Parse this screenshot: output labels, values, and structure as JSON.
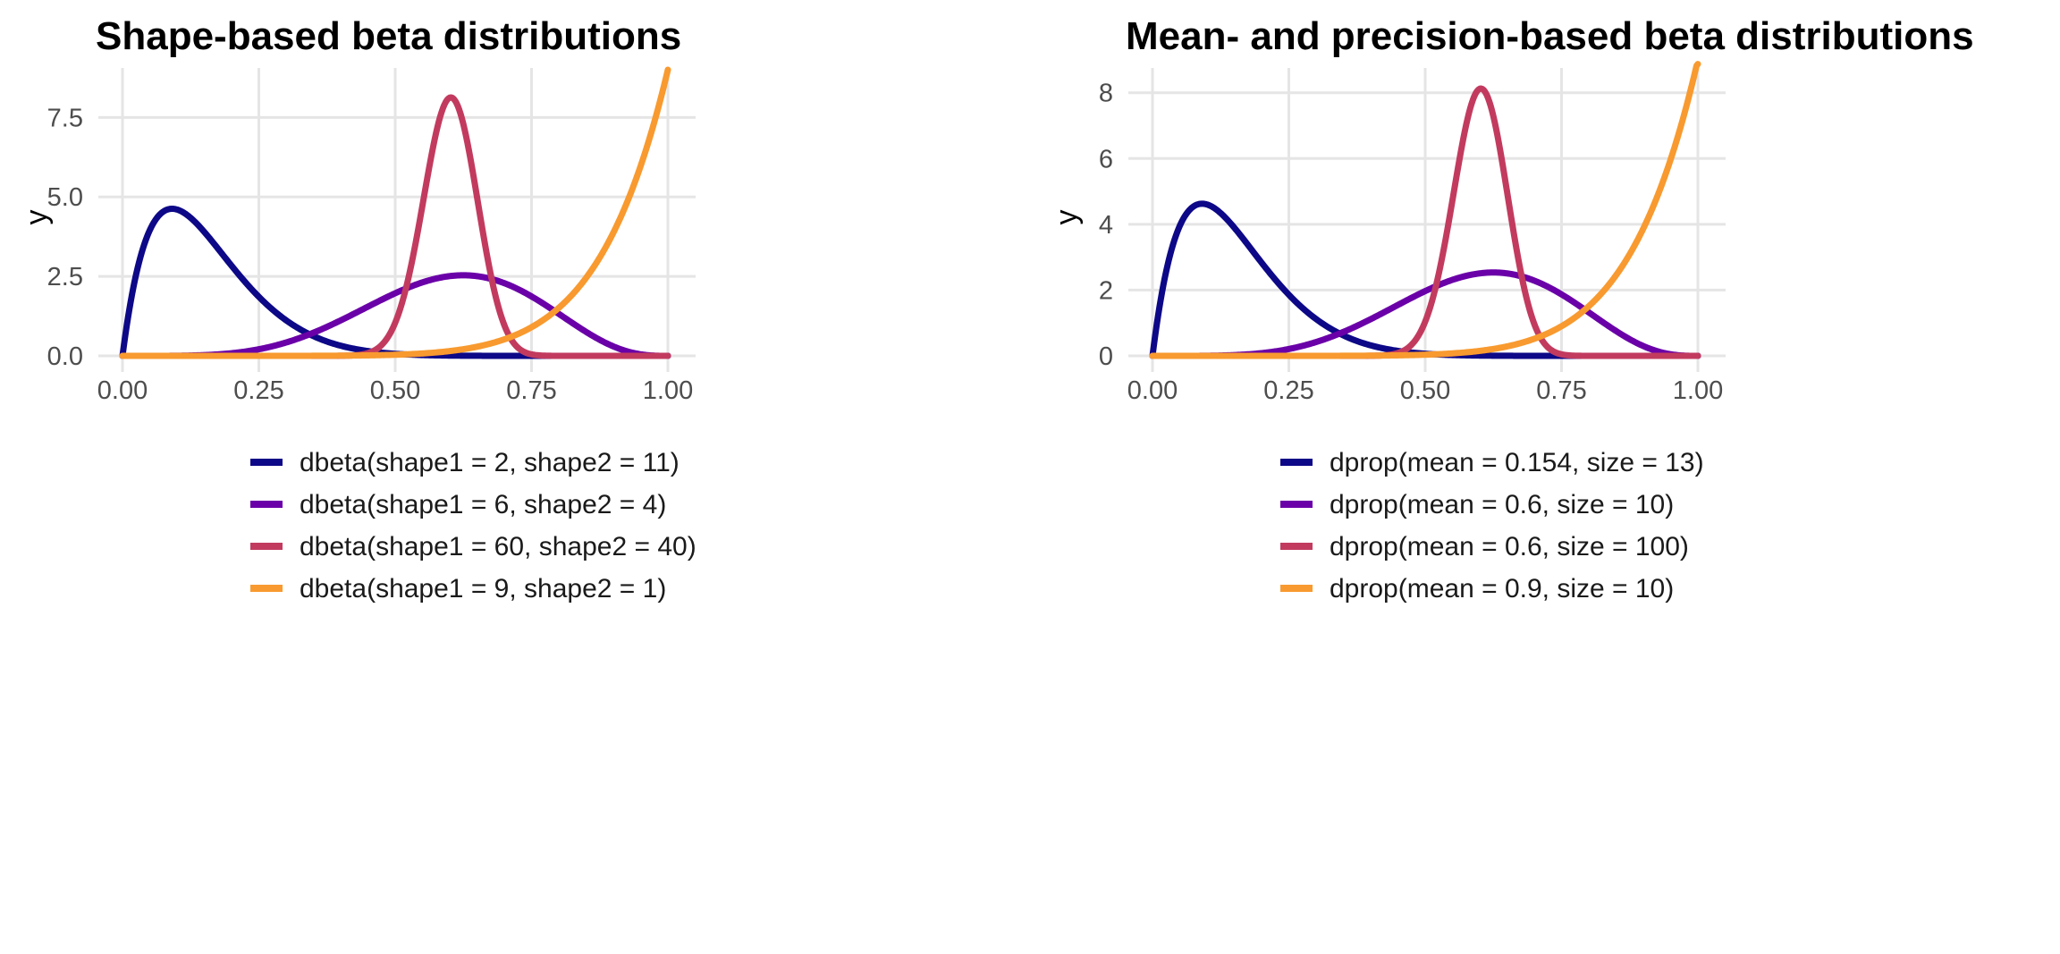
{
  "chart_data": [
    {
      "type": "line",
      "title": "Shape-based beta distributions",
      "xlabel": "",
      "ylabel": "y",
      "xlim": [
        0,
        1
      ],
      "ylim": [
        0,
        9
      ],
      "x_ticks": [
        "0.00",
        "0.25",
        "0.50",
        "0.75",
        "1.00"
      ],
      "y_ticks": [
        "0.0",
        "2.5",
        "5.0",
        "7.5"
      ],
      "legend_position": "bottom",
      "series": [
        {
          "name": "dbeta(shape1 = 2, shape2 = 11)",
          "color": "#0d0887",
          "dist": "beta",
          "a": 2,
          "b": 11
        },
        {
          "name": "dbeta(shape1 = 6, shape2 = 4)",
          "color": "#6a00a8",
          "dist": "beta",
          "a": 6,
          "b": 4
        },
        {
          "name": "dbeta(shape1 = 60, shape2 = 40)",
          "color": "#c23b5f",
          "dist": "beta",
          "a": 60,
          "b": 40
        },
        {
          "name": "dbeta(shape1 = 9, shape2 = 1)",
          "color": "#f89a2f",
          "dist": "beta",
          "a": 9,
          "b": 1
        }
      ]
    },
    {
      "type": "line",
      "title": "Mean- and precision-based beta distributions",
      "xlabel": "",
      "ylabel": "y",
      "xlim": [
        0,
        1
      ],
      "ylim": [
        0,
        8.7
      ],
      "x_ticks": [
        "0.00",
        "0.25",
        "0.50",
        "0.75",
        "1.00"
      ],
      "y_ticks": [
        "0",
        "2",
        "4",
        "6",
        "8"
      ],
      "legend_position": "bottom",
      "series": [
        {
          "name": "dprop(mean = 0.154, size = 13)",
          "color": "#0d0887",
          "dist": "beta",
          "a": 2,
          "b": 11
        },
        {
          "name": "dprop(mean = 0.6, size = 10)",
          "color": "#6a00a8",
          "dist": "beta",
          "a": 6,
          "b": 4
        },
        {
          "name": "dprop(mean = 0.6, size = 100)",
          "color": "#c23b5f",
          "dist": "beta",
          "a": 60,
          "b": 40
        },
        {
          "name": "dprop(mean = 0.9, size = 10)",
          "color": "#f89a2f",
          "dist": "beta",
          "a": 9,
          "b": 1
        }
      ]
    }
  ]
}
